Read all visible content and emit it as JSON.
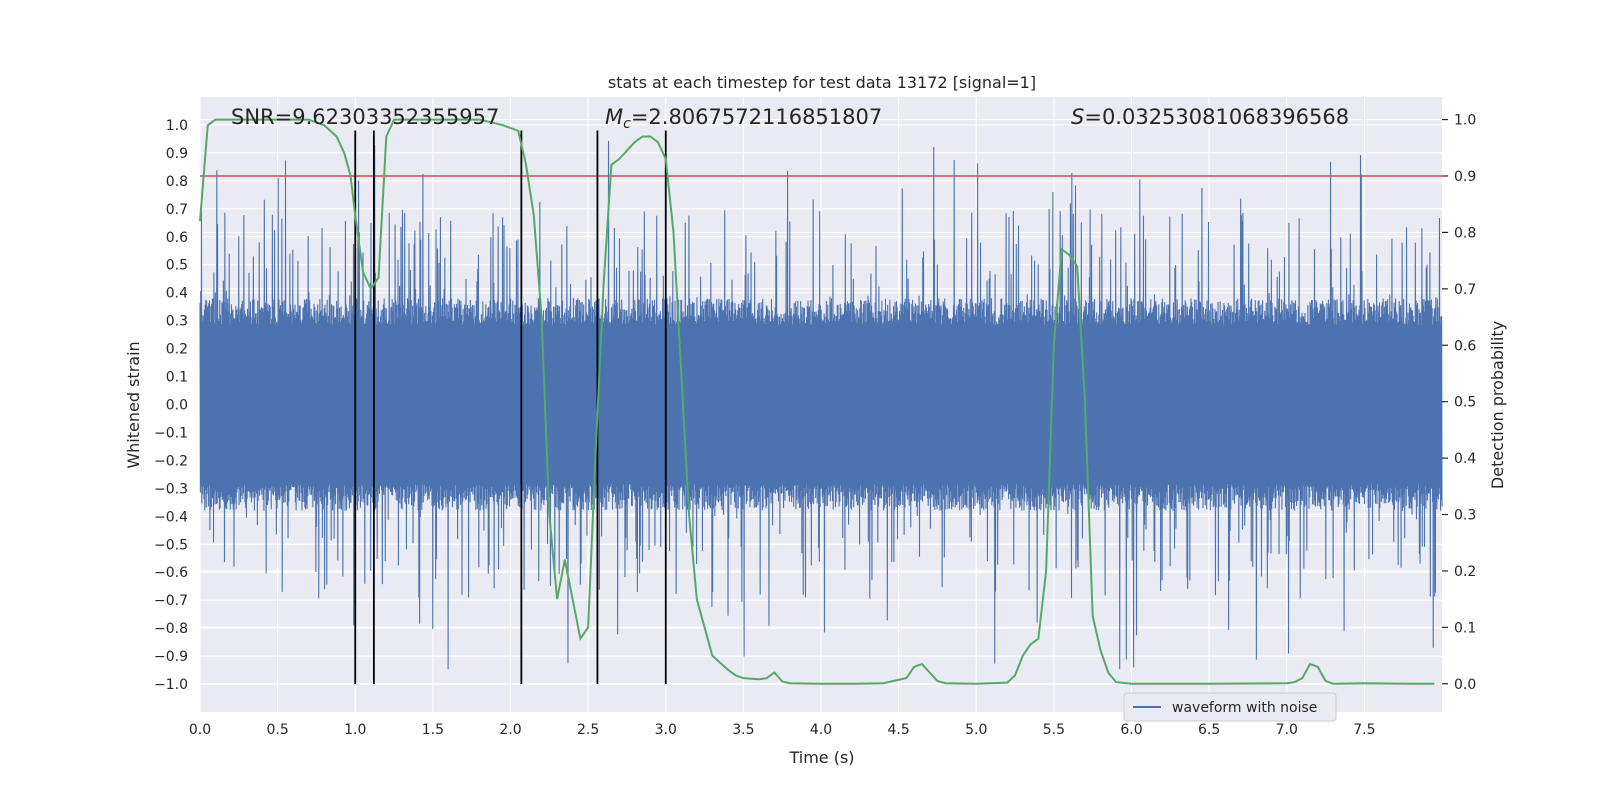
{
  "chart_data": {
    "type": "line",
    "title": "stats at each timestep for test data 13172 [signal=1]",
    "xlabel": "Time (s)",
    "ylabel": "Whitened strain",
    "ylabel_right": "Detection probability",
    "xlim": [
      0.0,
      8.0
    ],
    "ylim": [
      -1.1,
      1.1
    ],
    "ylim_right": [
      -0.05,
      1.04
    ],
    "x_ticks": [
      "0.0",
      "0.5",
      "1.0",
      "1.5",
      "2.0",
      "2.5",
      "3.0",
      "3.5",
      "4.0",
      "4.5",
      "5.0",
      "5.5",
      "6.0",
      "6.5",
      "7.0",
      "7.5"
    ],
    "y_ticks": [
      "1.0",
      "0.9",
      "0.8",
      "0.7",
      "0.6",
      "0.5",
      "0.4",
      "0.3",
      "0.2",
      "0.1",
      "0.0",
      "−0.1",
      "−0.2",
      "−0.3",
      "−0.4",
      "−0.5",
      "−0.6",
      "−0.7",
      "−0.8",
      "−0.9",
      "−1.0"
    ],
    "y_ticks_right": [
      "1.0",
      "0.9",
      "0.8",
      "0.7",
      "0.6",
      "0.5",
      "0.4",
      "0.3",
      "0.2",
      "0.1",
      "0.0"
    ],
    "grid": true,
    "legend": {
      "position": "lower-right",
      "entries": [
        "waveform with noise"
      ]
    },
    "annotations": {
      "snr": "SNR=9.62303352355957",
      "mc_symbol": "M",
      "mc_subscript": "c",
      "mc_value": "=2.8067572116851807",
      "s_symbol": "S",
      "s_value": "=0.03253081068396568"
    },
    "threshold": 0.9,
    "vertical_markers": [
      1.0,
      1.12,
      2.07,
      2.56,
      3.0
    ],
    "series": [
      {
        "name": "waveform with noise",
        "color": "#4c72b0",
        "style": "dense noisy strain, core band approx -0.38 to 0.38, spikes to approx +/-0.95",
        "core_amplitude": 0.38,
        "peak_amplitude": 0.95
      },
      {
        "name": "detection probability",
        "color": "#55a868",
        "axis": "right",
        "x": [
          0.0,
          0.05,
          0.1,
          0.15,
          0.3,
          0.5,
          0.7,
          0.8,
          0.88,
          0.93,
          0.97,
          1.0,
          1.05,
          1.1,
          1.15,
          1.2,
          1.25,
          1.3,
          1.5,
          1.8,
          1.95,
          2.05,
          2.1,
          2.15,
          2.2,
          2.25,
          2.3,
          2.35,
          2.4,
          2.45,
          2.5,
          2.55,
          2.6,
          2.65,
          2.7,
          2.8,
          2.85,
          2.9,
          2.95,
          3.0,
          3.05,
          3.1,
          3.15,
          3.2,
          3.25,
          3.3,
          3.4,
          3.45,
          3.5,
          3.6,
          3.65,
          3.7,
          3.75,
          3.8,
          4.0,
          4.2,
          4.4,
          4.55,
          4.6,
          4.65,
          4.7,
          4.75,
          4.8,
          5.0,
          5.2,
          5.25,
          5.3,
          5.35,
          5.4,
          5.45,
          5.5,
          5.55,
          5.6,
          5.65,
          5.7,
          5.75,
          5.8,
          5.85,
          5.9,
          6.0,
          6.5,
          7.0,
          7.05,
          7.1,
          7.15,
          7.2,
          7.25,
          7.3,
          7.5,
          7.8,
          7.95
        ],
        "values": [
          0.82,
          0.99,
          1.0,
          1.0,
          1.0,
          1.0,
          1.0,
          0.99,
          0.97,
          0.94,
          0.9,
          0.83,
          0.73,
          0.7,
          0.72,
          0.97,
          1.0,
          1.0,
          1.0,
          1.0,
          0.99,
          0.98,
          0.92,
          0.83,
          0.65,
          0.3,
          0.15,
          0.22,
          0.15,
          0.08,
          0.1,
          0.42,
          0.71,
          0.92,
          0.93,
          0.96,
          0.97,
          0.97,
          0.96,
          0.93,
          0.8,
          0.55,
          0.3,
          0.15,
          0.1,
          0.05,
          0.025,
          0.015,
          0.01,
          0.008,
          0.01,
          0.02,
          0.004,
          0.001,
          0.0,
          0.0,
          0.001,
          0.01,
          0.03,
          0.035,
          0.02,
          0.005,
          0.001,
          0.0,
          0.002,
          0.015,
          0.05,
          0.07,
          0.08,
          0.2,
          0.6,
          0.77,
          0.76,
          0.74,
          0.5,
          0.12,
          0.06,
          0.02,
          0.003,
          0.0,
          0.0,
          0.001,
          0.003,
          0.01,
          0.035,
          0.03,
          0.005,
          0.0,
          0.001,
          0.0,
          0.0
        ]
      }
    ]
  }
}
